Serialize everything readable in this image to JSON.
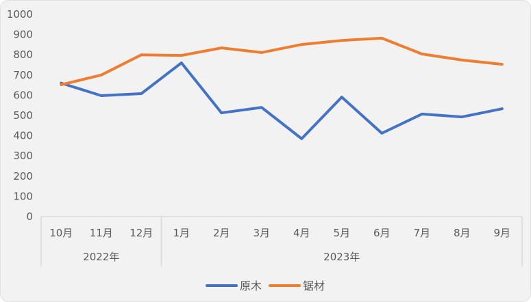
{
  "chart_data": {
    "type": "line",
    "title": "",
    "xlabel": "",
    "ylabel": "",
    "ylim": [
      0,
      1000
    ],
    "yticks": [
      0,
      100,
      200,
      300,
      400,
      500,
      600,
      700,
      800,
      900,
      1000
    ],
    "grid": false,
    "legend_position": "bottom",
    "categories": [
      "10月",
      "11月",
      "12月",
      "1月",
      "2月",
      "3月",
      "4月",
      "5月",
      "6月",
      "7月",
      "8月",
      "9月"
    ],
    "category_groups": [
      {
        "label": "2022年",
        "months": [
          "10月",
          "11月",
          "12月"
        ]
      },
      {
        "label": "2023年",
        "months": [
          "1月",
          "2月",
          "3月",
          "4月",
          "5月",
          "6月",
          "7月",
          "8月",
          "9月"
        ]
      }
    ],
    "series": [
      {
        "name": "原木",
        "color": "#4472c4",
        "values": [
          660,
          598,
          608,
          760,
          513,
          540,
          385,
          591,
          412,
          507,
          493,
          533
        ]
      },
      {
        "name": "锯材",
        "color": "#ed7d31",
        "values": [
          652,
          700,
          800,
          797,
          834,
          811,
          851,
          871,
          882,
          804,
          774,
          753
        ]
      }
    ]
  },
  "legend": {
    "items": [
      {
        "label": "原木",
        "color": "#4472c4"
      },
      {
        "label": "锯材",
        "color": "#ed7d31"
      }
    ]
  }
}
